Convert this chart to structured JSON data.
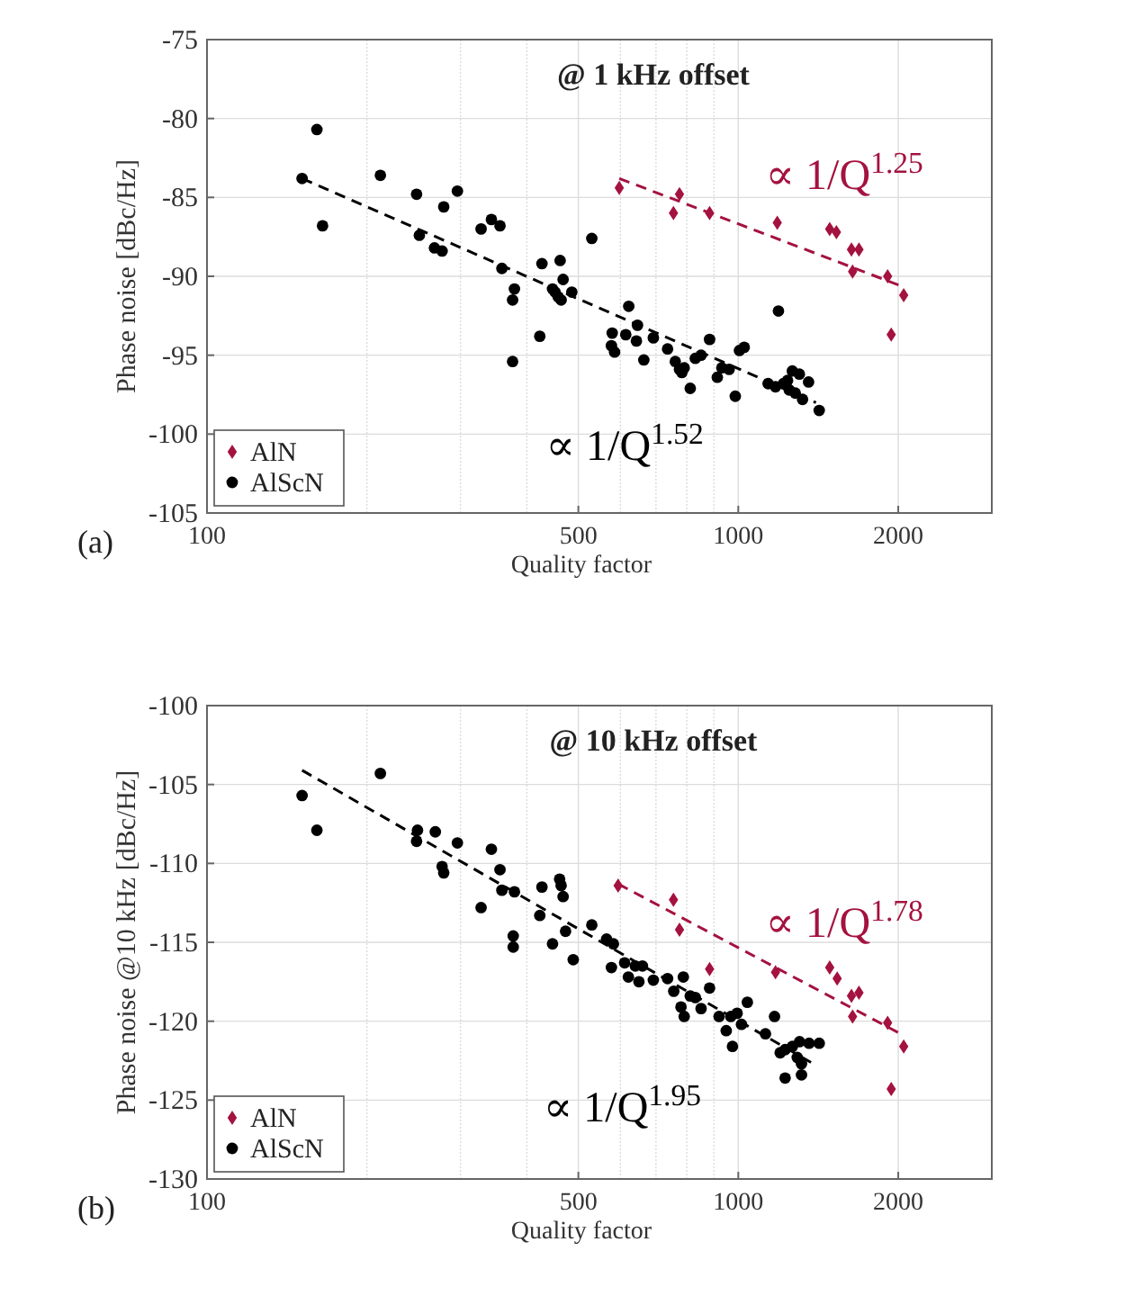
{
  "chart_data": [
    {
      "type": "scatter",
      "title": "@ 1 kHz offset",
      "xlabel": "Quality factor",
      "ylabel": "Phase noise [dBc/Hz]",
      "log": "x",
      "xlim": [
        100,
        3000
      ],
      "xticks": [
        100,
        500,
        1000,
        2000
      ],
      "ylim": [
        -105,
        -75
      ],
      "yticks": [
        -105,
        -100,
        -95,
        -90,
        -85,
        -80,
        -75
      ],
      "grid": true,
      "legend": "bottom left",
      "annotations": [
        "(a)",
        "∝ 1/Q$^{1.25}$",
        "∝ 1/Q$^{1.52}$"
      ],
      "series": [
        {
          "name": "AlN",
          "color": "#a4123f",
          "marker": "diamond",
          "x": [
            597,
            775,
            755,
            883,
            1184,
            1486,
            1530,
            1633,
            1687,
            1641,
            1910,
            2048,
            1940
          ],
          "values": [
            -84.4,
            -84.8,
            -86.0,
            -86.0,
            -86.6,
            -87.0,
            -87.2,
            -88.3,
            -88.3,
            -89.7,
            -90.0,
            -91.2,
            -93.7
          ]
        },
        {
          "name": "AlScN",
          "color": "#000000",
          "marker": "circle",
          "x": [
            151,
            161,
            165,
            212,
            248,
            251,
            268,
            277,
            279,
            296,
            328,
            343,
            356,
            359,
            379,
            376,
            376,
            423,
            427,
            447,
            452,
            458,
            464,
            462,
            468,
            486,
            530,
            579,
            577,
            585,
            622,
            614,
            646,
            643,
            664,
            692,
            736,
            761,
            775,
            791,
            783,
            812,
            830,
            851,
            883,
            913,
            931,
            961,
            987,
            1005,
            1026,
            1190,
            1138,
            1175,
            1216,
            1238,
            1264,
            1280,
            1303,
            1321,
            1356,
            1420,
            1247
          ],
          "values": [
            -83.8,
            -80.7,
            -86.8,
            -83.6,
            -84.8,
            -87.4,
            -88.2,
            -88.4,
            -85.6,
            -84.6,
            -87.0,
            -86.4,
            -86.8,
            -89.5,
            -90.8,
            -91.5,
            -95.4,
            -93.8,
            -89.2,
            -90.8,
            -91.0,
            -91.3,
            -91.5,
            -89.0,
            -90.2,
            -91.0,
            -87.6,
            -93.6,
            -94.4,
            -94.8,
            -91.9,
            -93.7,
            -93.1,
            -94.1,
            -95.3,
            -93.9,
            -94.6,
            -95.4,
            -95.9,
            -95.8,
            -96.1,
            -97.1,
            -95.2,
            -95.0,
            -94.0,
            -96.4,
            -95.8,
            -95.9,
            -97.6,
            -94.7,
            -94.5,
            -92.2,
            -96.8,
            -97.0,
            -96.8,
            -96.6,
            -96.0,
            -97.4,
            -96.2,
            -97.8,
            -96.7,
            -98.5,
            -97.2
          ]
        },
        {
          "type": "line",
          "color": "#a4123f",
          "line_style": "dashed",
          "marker": "none",
          "x": [
            597,
            2020
          ],
          "values": [
            -83.8,
            -90.6
          ]
        },
        {
          "type": "line",
          "color": "#000000",
          "line_style": "dashed",
          "marker": "none",
          "x": [
            151,
            1400
          ],
          "values": [
            -83.8,
            -98.0
          ]
        }
      ]
    },
    {
      "type": "scatter",
      "title": "@ 10 kHz offset",
      "xlabel": "Quality factor",
      "ylabel": "Phase noise @10 kHz [dBc/Hz]",
      "log": "x",
      "xlim": [
        100,
        3000
      ],
      "xticks": [
        100,
        500,
        1000,
        2000
      ],
      "ylim": [
        -130,
        -100
      ],
      "yticks": [
        -130,
        -125,
        -120,
        -115,
        -110,
        -105,
        -100
      ],
      "grid": true,
      "legend": "bottom left",
      "annotations": [
        "(b)",
        "∝ 1/Q$^{1.78}$",
        "∝ 1/Q$^{1.95}$"
      ],
      "series": [
        {
          "name": "AlN",
          "color": "#a4123f",
          "marker": "diamond",
          "x": [
            594,
            755,
            775,
            883,
            1175,
            1486,
            1535,
            1633,
            1687,
            1641,
            1910,
            2048,
            1940
          ],
          "values": [
            -111.4,
            -112.3,
            -114.2,
            -116.7,
            -116.9,
            -116.6,
            -117.3,
            -118.4,
            -118.2,
            -119.7,
            -120.1,
            -121.6,
            -124.3
          ]
        },
        {
          "name": "AlScN",
          "color": "#000000",
          "marker": "circle",
          "x": [
            151,
            161,
            212,
            249,
            248,
            269,
            277,
            279,
            296,
            328,
            343,
            356,
            359,
            379,
            377,
            377,
            423,
            427,
            447,
            461,
            464,
            468,
            473,
            489,
            530,
            565,
            582,
            577,
            611,
            621,
            640,
            660,
            650,
            692,
            736,
            788,
            756,
            780,
            812,
            830,
            851,
            883,
            791,
            920,
            949,
            968,
            995,
            1040,
            975,
            1014,
            1125,
            1170,
            1199,
            1225,
            1264,
            1291,
            1304,
            1315,
            1359,
            1420,
            1225,
            1315
          ],
          "values": [
            -105.7,
            -107.9,
            -104.3,
            -107.9,
            -108.6,
            -108.0,
            -110.2,
            -110.6,
            -108.7,
            -112.8,
            -109.1,
            -110.4,
            -111.7,
            -111.8,
            -114.6,
            -115.3,
            -113.3,
            -111.5,
            -115.1,
            -111.0,
            -111.4,
            -112.1,
            -114.3,
            -116.1,
            -113.9,
            -114.8,
            -115.1,
            -116.6,
            -116.3,
            -117.2,
            -116.5,
            -116.5,
            -117.5,
            -117.4,
            -117.3,
            -117.2,
            -118.1,
            -119.1,
            -118.4,
            -118.5,
            -119.2,
            -117.9,
            -119.7,
            -119.7,
            -120.6,
            -119.7,
            -119.5,
            -118.8,
            -121.6,
            -120.2,
            -120.8,
            -119.7,
            -122.0,
            -121.8,
            -121.6,
            -122.3,
            -121.3,
            -122.7,
            -121.4,
            -121.4,
            -123.6,
            -123.4
          ]
        },
        {
          "type": "line",
          "color": "#a4123f",
          "line_style": "dashed",
          "marker": "none",
          "x": [
            594,
            2020
          ],
          "values": [
            -111.3,
            -120.8
          ]
        },
        {
          "type": "line",
          "color": "#000000",
          "line_style": "dashed",
          "marker": "none",
          "x": [
            151,
            1385
          ],
          "values": [
            -104.1,
            -122.7
          ]
        }
      ]
    }
  ]
}
